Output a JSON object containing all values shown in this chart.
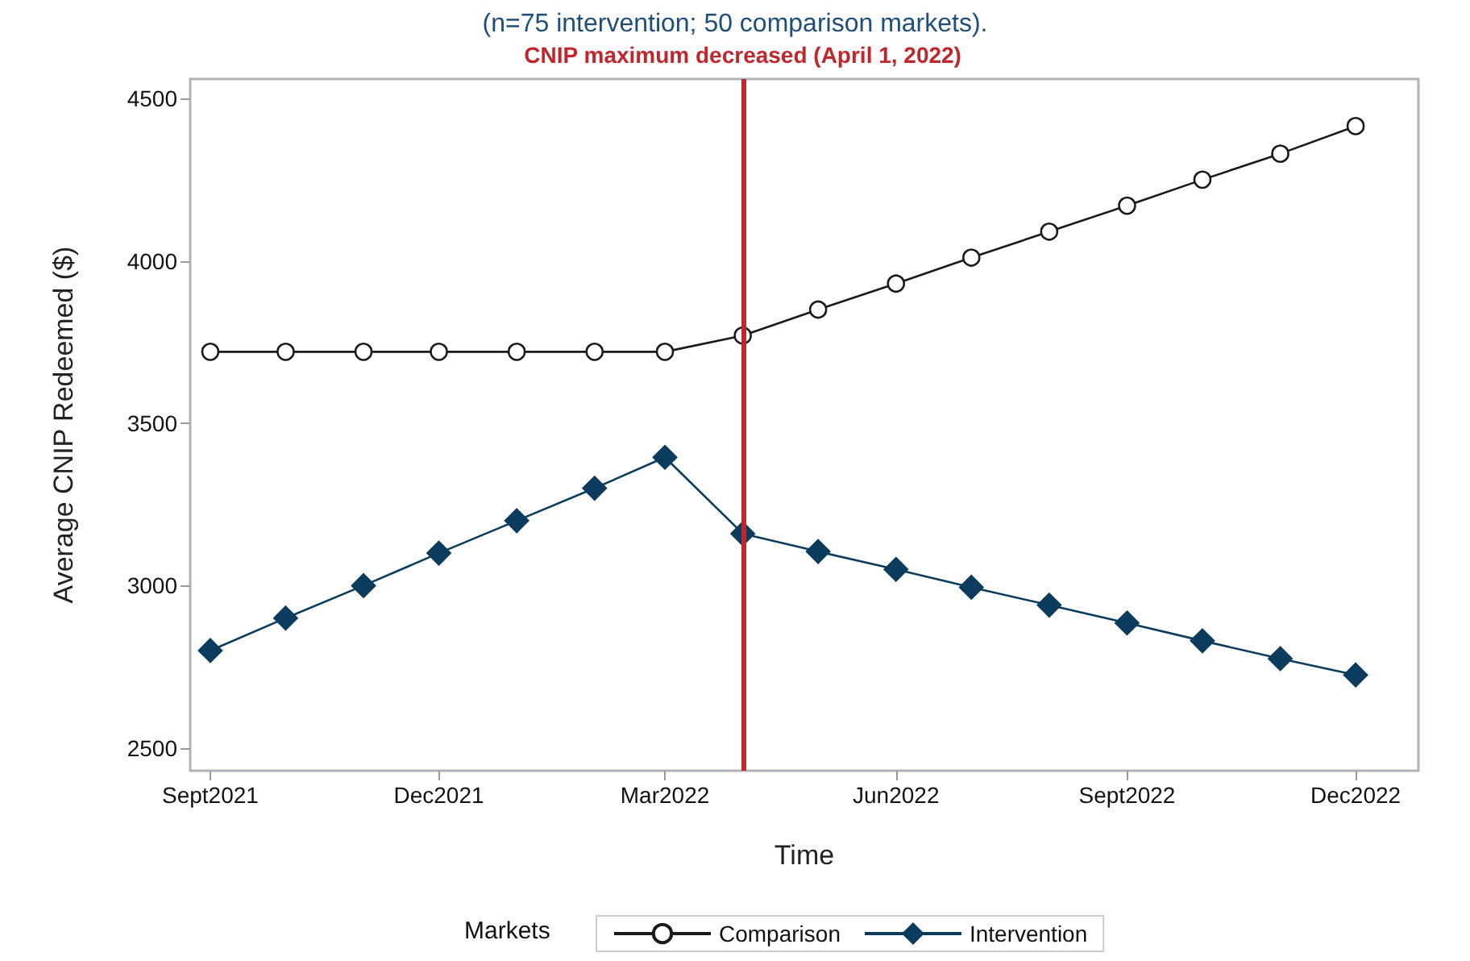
{
  "chart_data": {
    "type": "line",
    "subtitle": "(n=75 intervention; 50 comparison markets).",
    "xlabel": "Time",
    "ylabel": "Average CNIP Redeemed ($)",
    "legend_title": "Markets",
    "x": [
      "2021-09",
      "2021-10",
      "2021-11",
      "2021-12",
      "2022-01",
      "2022-02",
      "2022-03",
      "2022-04",
      "2022-05",
      "2022-06",
      "2022-07",
      "2022-08",
      "2022-09",
      "2022-10",
      "2022-11",
      "2022-12"
    ],
    "series": [
      {
        "name": "Comparison",
        "color": "#1a1a1a",
        "marker": "circle",
        "values": [
          3720,
          3720,
          3720,
          3720,
          3720,
          3720,
          3720,
          3770,
          3850,
          3930,
          4010,
          4090,
          4170,
          4250,
          4330,
          4415
        ]
      },
      {
        "name": "Intervention",
        "color": "#0b3c5d",
        "marker": "diamond",
        "values": [
          2800,
          2900,
          3000,
          3100,
          3200,
          3300,
          3395,
          3160,
          3105,
          3050,
          2995,
          2940,
          2885,
          2830,
          2775,
          2725
        ]
      }
    ],
    "xlim": [
      "2021-08-24",
      "2022-12-26"
    ],
    "xticks": [
      {
        "value": "2021-09",
        "label": "Sept2021"
      },
      {
        "value": "2021-12",
        "label": "Dec2021"
      },
      {
        "value": "2022-03",
        "label": "Mar2022"
      },
      {
        "value": "2022-06",
        "label": "Jun2022"
      },
      {
        "value": "2022-09",
        "label": "Sept2022"
      },
      {
        "value": "2022-12",
        "label": "Dec2022"
      }
    ],
    "ylim": [
      2430,
      4560
    ],
    "yticks": [
      2500,
      3000,
      3500,
      4000,
      4500
    ],
    "ref_lines": [
      {
        "axis": "x",
        "value": "2022-04-01",
        "label": "CNIP maximum decreased (April 1, 2022)",
        "color": "#c0272d",
        "line_style": "solid"
      }
    ],
    "grid": false,
    "legend": "bottom",
    "line_style": "solid"
  }
}
